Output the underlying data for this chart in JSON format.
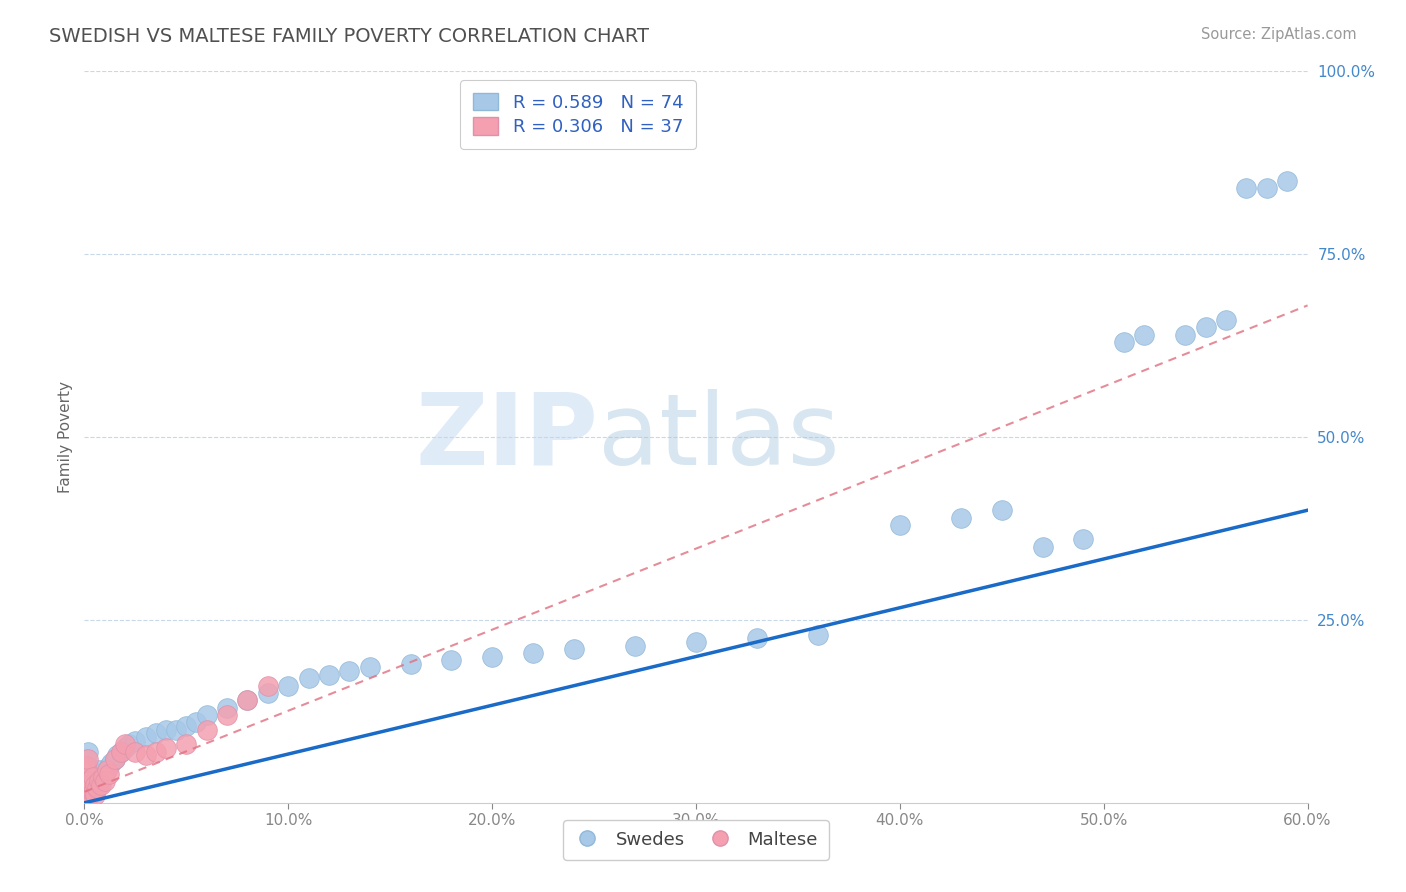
{
  "title": "SWEDISH VS MALTESE FAMILY POVERTY CORRELATION CHART",
  "source_text": "Source: ZipAtlas.com",
  "ylabel": "Family Poverty",
  "xlim": [
    0.0,
    0.6
  ],
  "ylim": [
    0.0,
    1.0
  ],
  "xtick_values": [
    0.0,
    0.1,
    0.2,
    0.3,
    0.4,
    0.5,
    0.6
  ],
  "ytick_values": [
    0.25,
    0.5,
    0.75,
    1.0
  ],
  "swedes_color": "#a8c8e8",
  "maltese_color": "#f4a0b0",
  "swedes_line_color": "#1a6ac8",
  "maltese_line_color": "#e07080",
  "R_swedes": 0.589,
  "N_swedes": 74,
  "R_maltese": 0.306,
  "N_maltese": 37,
  "legend_text_color": "#3060c0",
  "title_color": "#505050",
  "watermark_zip": "ZIP",
  "watermark_atlas": "atlas",
  "background_color": "#ffffff",
  "grid_color": "#c8d8e8",
  "swedes_x": [
    0.001,
    0.001,
    0.001,
    0.001,
    0.001,
    0.001,
    0.001,
    0.001,
    0.001,
    0.002,
    0.002,
    0.002,
    0.002,
    0.002,
    0.003,
    0.003,
    0.003,
    0.004,
    0.004,
    0.005,
    0.005,
    0.006,
    0.006,
    0.007,
    0.007,
    0.008,
    0.009,
    0.01,
    0.011,
    0.012,
    0.013,
    0.015,
    0.016,
    0.018,
    0.02,
    0.022,
    0.025,
    0.03,
    0.035,
    0.04,
    0.045,
    0.05,
    0.055,
    0.06,
    0.07,
    0.08,
    0.09,
    0.1,
    0.11,
    0.12,
    0.13,
    0.14,
    0.16,
    0.18,
    0.2,
    0.22,
    0.24,
    0.27,
    0.3,
    0.33,
    0.36,
    0.4,
    0.43,
    0.45,
    0.47,
    0.49,
    0.51,
    0.52,
    0.54,
    0.55,
    0.56,
    0.57,
    0.58,
    0.59
  ],
  "swedes_y": [
    0.01,
    0.015,
    0.02,
    0.025,
    0.03,
    0.035,
    0.04,
    0.05,
    0.06,
    0.01,
    0.02,
    0.03,
    0.05,
    0.07,
    0.015,
    0.025,
    0.04,
    0.02,
    0.035,
    0.015,
    0.03,
    0.02,
    0.04,
    0.025,
    0.045,
    0.03,
    0.035,
    0.04,
    0.045,
    0.05,
    0.055,
    0.06,
    0.065,
    0.07,
    0.075,
    0.08,
    0.085,
    0.09,
    0.095,
    0.1,
    0.1,
    0.105,
    0.11,
    0.12,
    0.13,
    0.14,
    0.15,
    0.16,
    0.17,
    0.175,
    0.18,
    0.185,
    0.19,
    0.195,
    0.2,
    0.205,
    0.21,
    0.215,
    0.22,
    0.225,
    0.23,
    0.38,
    0.39,
    0.4,
    0.35,
    0.36,
    0.63,
    0.64,
    0.64,
    0.65,
    0.66,
    0.84,
    0.84,
    0.85
  ],
  "maltese_x": [
    0.001,
    0.001,
    0.001,
    0.001,
    0.001,
    0.001,
    0.001,
    0.001,
    0.002,
    0.002,
    0.002,
    0.002,
    0.003,
    0.003,
    0.004,
    0.004,
    0.005,
    0.005,
    0.006,
    0.007,
    0.008,
    0.009,
    0.01,
    0.011,
    0.012,
    0.015,
    0.018,
    0.02,
    0.025,
    0.03,
    0.035,
    0.04,
    0.05,
    0.06,
    0.07,
    0.08,
    0.09
  ],
  "maltese_y": [
    0.005,
    0.01,
    0.015,
    0.02,
    0.025,
    0.03,
    0.04,
    0.05,
    0.01,
    0.02,
    0.03,
    0.06,
    0.01,
    0.025,
    0.015,
    0.035,
    0.01,
    0.025,
    0.02,
    0.03,
    0.025,
    0.035,
    0.03,
    0.045,
    0.04,
    0.06,
    0.07,
    0.08,
    0.07,
    0.065,
    0.07,
    0.075,
    0.08,
    0.1,
    0.12,
    0.14,
    0.16
  ],
  "sw_line_x0": 0.0,
  "sw_line_x1": 0.6,
  "sw_line_y0": 0.0,
  "sw_line_y1": 0.4,
  "mt_line_x0": 0.0,
  "mt_line_x1": 0.6,
  "mt_line_y0": 0.015,
  "mt_line_y1": 0.68
}
